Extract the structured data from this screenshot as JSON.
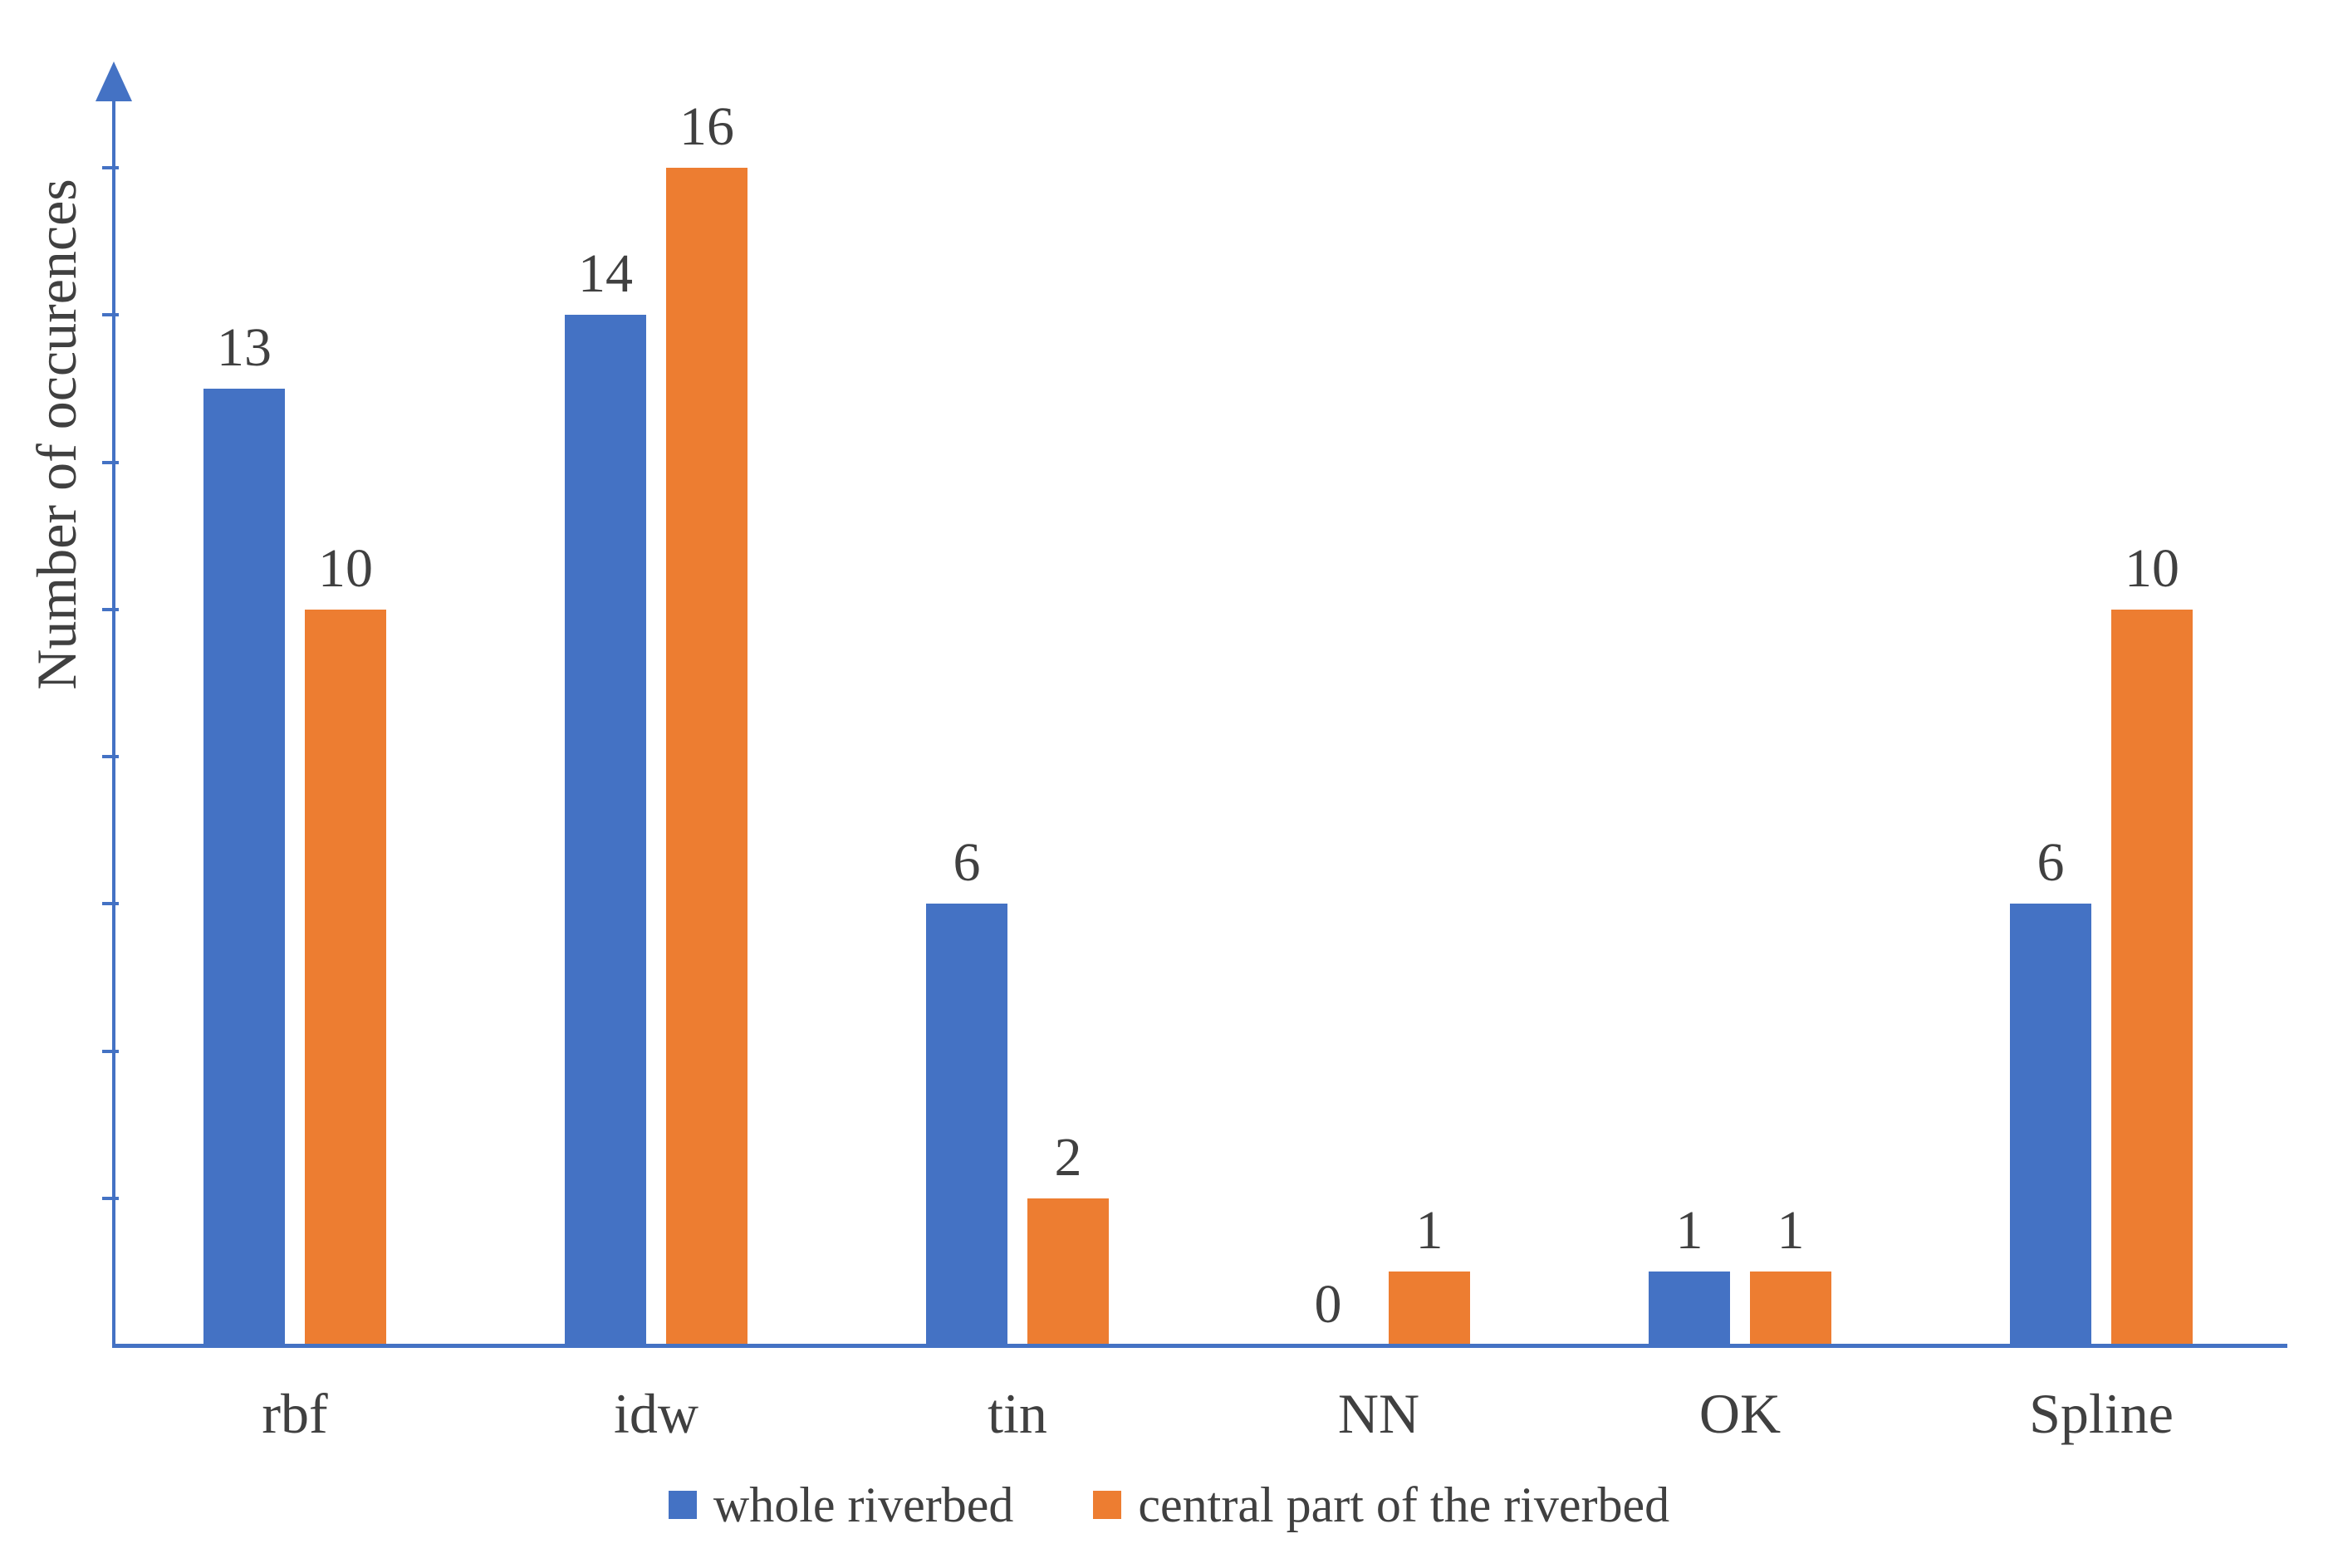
{
  "chart_data": {
    "type": "bar",
    "title": "",
    "ylabel": "Number of occurences",
    "xlabel": "",
    "categories": [
      "rbf",
      "idw",
      "tin",
      "NN",
      "OK",
      "Spline"
    ],
    "series": [
      {
        "name": "whole riverbed",
        "color": "#4472C4",
        "values": [
          13,
          14,
          6,
          0,
          1,
          6
        ]
      },
      {
        "name": "central part of the riverbed",
        "color": "#ED7D31",
        "values": [
          10,
          16,
          2,
          1,
          1,
          10
        ]
      }
    ],
    "data_labels": [
      [
        "13",
        "14",
        "6",
        "0",
        "1",
        "6"
      ],
      [
        "10",
        "16",
        "2",
        "1",
        "1",
        "10"
      ]
    ],
    "ylim": [
      0,
      16
    ],
    "ytick_step": 2,
    "ytick_labels_shown": false,
    "grid": false,
    "legend_position": "bottom",
    "axis_color": "#4472C4",
    "text_color": "#404040"
  }
}
